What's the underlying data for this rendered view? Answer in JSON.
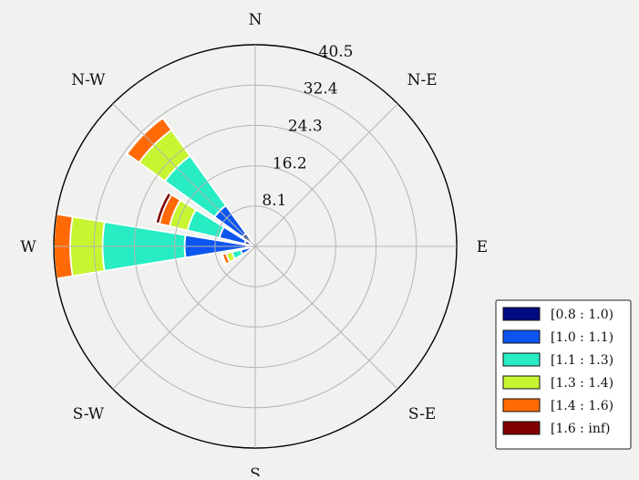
{
  "chart_data": {
    "type": "windrose",
    "direction_labels": [
      "N",
      "N-E",
      "E",
      "S-E",
      "S",
      "S-W",
      "W",
      "N-W"
    ],
    "direction_angles": [
      0,
      45,
      90,
      135,
      180,
      225,
      270,
      315
    ],
    "radial_ticks": [
      "8.1",
      "16.2",
      "24.3",
      "32.4",
      "40.5"
    ],
    "radial_tick_values": [
      8.1,
      16.2,
      24.3,
      32.4,
      40.5
    ],
    "rmax": 40.5,
    "grid": true,
    "legend_position": "lower-right",
    "bins": [
      {
        "label": "[0.8 : 1.0)",
        "color": "#000a80"
      },
      {
        "label": "[1.0 : 1.1)",
        "color": "#0c55f0"
      },
      {
        "label": "[1.1 : 1.3)",
        "color": "#27ecc4"
      },
      {
        "label": "[1.3 : 1.4)",
        "color": "#c8f531"
      },
      {
        "label": "[1.4 : 1.6)",
        "color": "#ff6a06"
      },
      {
        "label": "[1.6 : inf)",
        "color": "#800000"
      }
    ],
    "sectors": [
      {
        "direction": 270,
        "cumulative": [
          1.8,
          14.2,
          30.7,
          37.2,
          40.5,
          40.6
        ]
      },
      {
        "direction": 292.5,
        "cumulative": [
          2.2,
          7.4,
          14.0,
          17.7,
          19.8,
          20.6
        ]
      },
      {
        "direction": 315,
        "cumulative": [
          3.2,
          10.1,
          22.4,
          28.8,
          31.8,
          31.9
        ]
      },
      {
        "direction": 247.5,
        "cumulative": [
          1.0,
          3.0,
          4.8,
          6.0,
          6.8,
          7.1
        ]
      }
    ]
  }
}
